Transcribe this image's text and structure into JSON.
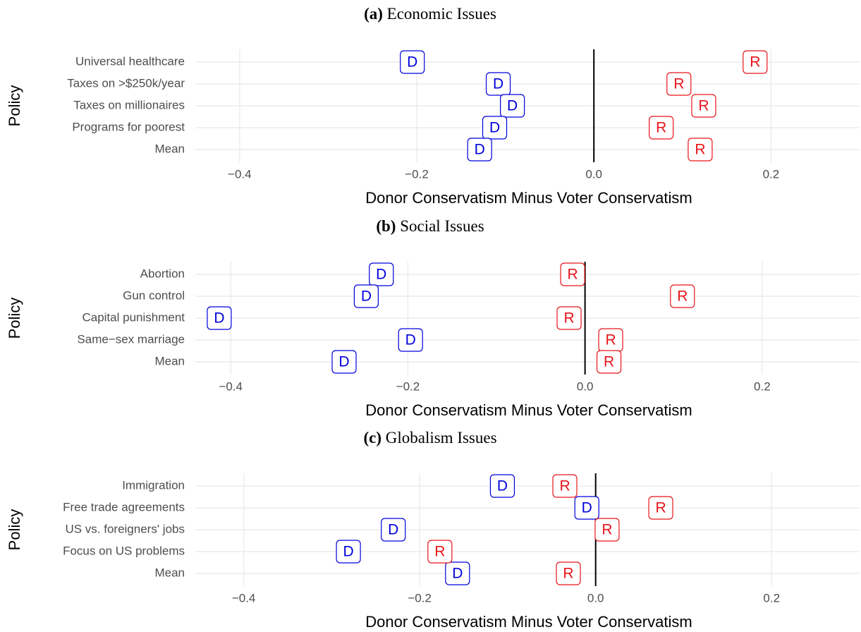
{
  "chart_data": [
    {
      "type": "scatter",
      "panel": "(a)",
      "title": "Economic Issues",
      "xlabel": "Donor Conservatism Minus Voter Conservatism",
      "ylabel": "Policy",
      "categories": [
        "Universal healthcare",
        "Taxes on >$250k/year",
        "Taxes on millionaires",
        "Programs for poorest",
        "Mean"
      ],
      "series": [
        {
          "name": "D",
          "color": "#0000dd",
          "values": [
            -0.205,
            -0.108,
            -0.092,
            -0.112,
            -0.129
          ]
        },
        {
          "name": "R",
          "color": "#e8141a",
          "values": [
            0.182,
            0.096,
            0.124,
            0.076,
            0.12
          ]
        }
      ],
      "xlim": [
        -0.45,
        0.3
      ],
      "xticks": [
        {
          "value": -0.4,
          "label": "−0.4"
        },
        {
          "value": -0.2,
          "label": "−0.2"
        },
        {
          "value": 0,
          "label": "0.0"
        },
        0.2
      ],
      "reference_line": 0,
      "grid": true
    },
    {
      "type": "scatter",
      "panel": "(b)",
      "title": "Social Issues",
      "xlabel": "Donor Conservatism Minus Voter Conservatism",
      "ylabel": "Policy",
      "categories": [
        "Abortion",
        "Gun control",
        "Capital punishment",
        "Same−sex marriage",
        "Mean"
      ],
      "series": [
        {
          "name": "D",
          "color": "#0000dd",
          "values": [
            -0.23,
            -0.247,
            -0.413,
            -0.197,
            -0.272
          ]
        },
        {
          "name": "R",
          "color": "#e8141a",
          "values": [
            -0.014,
            0.11,
            -0.018,
            0.029,
            0.027
          ]
        }
      ],
      "xlim": [
        -0.44,
        0.31
      ],
      "xticks": [
        {
          "value": -0.4,
          "label": "−0.4"
        },
        {
          "value": -0.2,
          "label": "−0.2"
        },
        {
          "value": 0,
          "label": "0.0"
        },
        0.2
      ],
      "reference_line": 0,
      "grid": true
    },
    {
      "type": "scatter",
      "panel": "(c)",
      "title": "Globalism Issues",
      "xlabel": "Donor Conservatism Minus Voter Conservatism",
      "ylabel": "Policy",
      "categories": [
        "Immigration",
        "Free trade agreements",
        "US vs. foreigners' jobs",
        "Focus on US problems",
        "Mean"
      ],
      "series": [
        {
          "name": "D",
          "color": "#0000dd",
          "values": [
            -0.106,
            -0.01,
            -0.23,
            -0.281,
            -0.157
          ]
        },
        {
          "name": "R",
          "color": "#e8141a",
          "values": [
            -0.035,
            0.074,
            0.013,
            -0.177,
            -0.031
          ]
        }
      ],
      "xlim": [
        -0.455,
        0.3
      ],
      "xticks": [
        {
          "value": -0.4,
          "label": "−0.4"
        },
        {
          "value": -0.2,
          "label": "−0.2"
        },
        {
          "value": 0,
          "label": "0.0"
        },
        0.2
      ],
      "reference_line": 0,
      "grid": true
    }
  ]
}
